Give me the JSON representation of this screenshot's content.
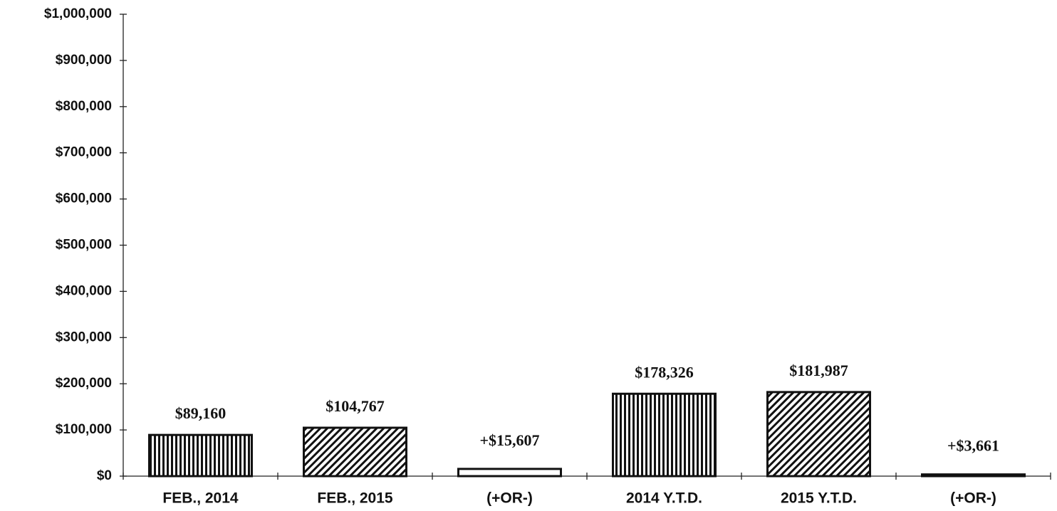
{
  "chart_data": {
    "type": "bar",
    "categories": [
      "FEB., 2014",
      "FEB., 2015",
      "(+OR-)",
      "2014 Y.T.D.",
      "2015 Y.T.D.",
      "(+OR-)"
    ],
    "values": [
      89160,
      104767,
      15607,
      178326,
      181987,
      3661
    ],
    "value_labels": [
      "$89,160",
      "$104,767",
      "+$15,607",
      "$178,326",
      "$181,987",
      "+$3,661"
    ],
    "patterns": [
      "vertical",
      "diagonal",
      "none",
      "vertical",
      "diagonal",
      "none"
    ],
    "color": "#111111",
    "ylim": [
      0,
      1000000
    ],
    "yticks": [
      {
        "value": 0,
        "label": "$0"
      },
      {
        "value": 100000,
        "label": "$100,000"
      },
      {
        "value": 200000,
        "label": "$200,000"
      },
      {
        "value": 300000,
        "label": "$300,000"
      },
      {
        "value": 400000,
        "label": "$400,000"
      },
      {
        "value": 500000,
        "label": "$500,000"
      },
      {
        "value": 600000,
        "label": "$600,000"
      },
      {
        "value": 700000,
        "label": "$700,000"
      },
      {
        "value": 800000,
        "label": "$800,000"
      },
      {
        "value": 900000,
        "label": "$900,000"
      },
      {
        "value": 1000000,
        "label": "$1,000,000"
      }
    ],
    "grid": false
  }
}
